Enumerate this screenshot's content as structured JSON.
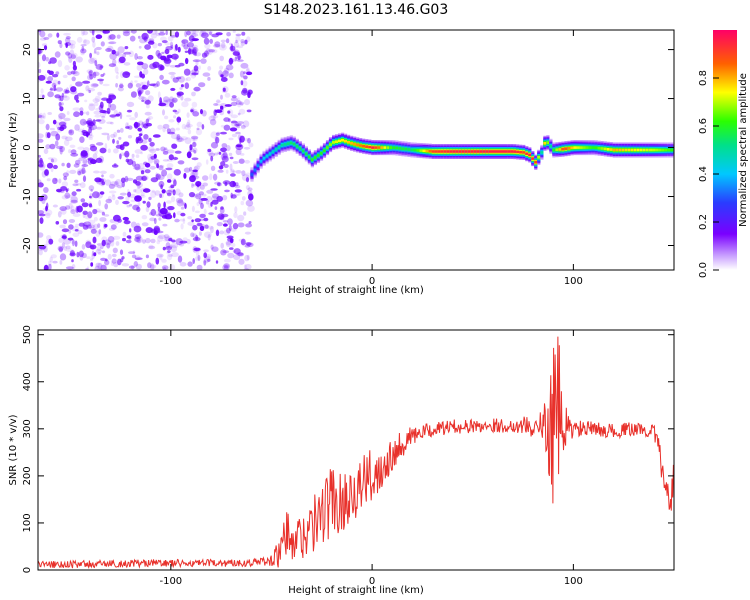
{
  "title": "S148.2023.161.13.46.G03",
  "chart_data": [
    {
      "type": "heatmap",
      "title": "S148.2023.161.13.46.G03",
      "xlabel": "Height of straight line (km)",
      "ylabel": "Frequency (Hz)",
      "xlim": [
        -166,
        150
      ],
      "ylim": [
        -25,
        24
      ],
      "x_ticks": [
        -100,
        0,
        100
      ],
      "y_ticks": [
        -20,
        -10,
        0,
        10,
        20
      ],
      "noise_region_x": [
        -166,
        -60
      ],
      "ridge": {
        "x": [
          -60,
          -55,
          -50,
          -45,
          -40,
          -35,
          -30,
          -25,
          -20,
          -15,
          -10,
          -5,
          0,
          10,
          20,
          30,
          40,
          50,
          60,
          70,
          75,
          78,
          81,
          84,
          86,
          88,
          90,
          95,
          100,
          110,
          120,
          130,
          140,
          150
        ],
        "frequency": [
          -5.5,
          -2.5,
          -1.0,
          0.5,
          1.0,
          -0.5,
          -2.5,
          -1.0,
          1.0,
          1.5,
          0.8,
          0.3,
          0.0,
          0.0,
          -0.5,
          -0.8,
          -0.8,
          -0.8,
          -0.8,
          -0.8,
          -1.0,
          -1.5,
          -3.0,
          -1.0,
          1.5,
          0.5,
          -0.5,
          -0.3,
          0.0,
          0.0,
          -0.5,
          -0.5,
          -0.5,
          -0.5
        ],
        "amplitude": [
          0.3,
          0.4,
          0.45,
          0.5,
          0.55,
          0.55,
          0.6,
          0.6,
          0.7,
          0.75,
          0.8,
          0.85,
          0.95,
          0.6,
          0.55,
          0.9,
          0.95,
          0.95,
          0.95,
          0.95,
          0.9,
          0.95,
          0.9,
          0.5,
          0.85,
          0.5,
          0.6,
          0.9,
          0.75,
          0.6,
          0.8,
          0.75,
          0.7,
          0.6
        ]
      },
      "colorbar": {
        "label": "Normalized spectral amplitude",
        "range": [
          0.0,
          1.0
        ],
        "ticks": [
          0.0,
          0.2,
          0.4,
          0.6,
          0.8
        ],
        "colormap": "rainbow (white to violet, blue, cyan, green, yellow, red, magenta)"
      },
      "noise_color": "#6a00ff",
      "grid": false
    },
    {
      "type": "line",
      "xlabel": "Height of straight line (km)",
      "ylabel": "SNR (10 * v/v)",
      "xlim": [
        -166,
        150
      ],
      "ylim": [
        0,
        510
      ],
      "x_ticks": [
        -100,
        0,
        100
      ],
      "y_ticks": [
        0,
        100,
        200,
        300,
        400,
        500
      ],
      "grid": false,
      "series": [
        {
          "color": "#e8312b",
          "x": [
            -166,
            -150,
            -130,
            -110,
            -90,
            -70,
            -60,
            -55,
            -50,
            -45,
            -42,
            -40,
            -35,
            -30,
            -25,
            -20,
            -15,
            -10,
            -5,
            0,
            5,
            10,
            15,
            20,
            30,
            40,
            50,
            60,
            70,
            75,
            80,
            85,
            88,
            90,
            92,
            93,
            95,
            100,
            110,
            120,
            130,
            140,
            142,
            144,
            146,
            148,
            150
          ],
          "values": [
            12,
            12,
            13,
            15,
            14,
            15,
            16,
            18,
            20,
            40,
            80,
            50,
            75,
            90,
            120,
            150,
            140,
            170,
            180,
            200,
            220,
            250,
            270,
            285,
            298,
            305,
            305,
            308,
            305,
            310,
            300,
            305,
            300,
            310,
            320,
            330,
            300,
            300,
            300,
            295,
            300,
            295,
            270,
            210,
            180,
            140,
            205
          ],
          "noise_amp": [
            8,
            8,
            8,
            8,
            8,
            8,
            8,
            10,
            12,
            40,
            60,
            40,
            55,
            60,
            70,
            80,
            60,
            65,
            60,
            60,
            45,
            40,
            30,
            20,
            15,
            15,
            15,
            15,
            15,
            20,
            20,
            40,
            100,
            180,
            220,
            150,
            60,
            20,
            15,
            15,
            15,
            15,
            25,
            30,
            30,
            40,
            60
          ]
        }
      ]
    }
  ]
}
